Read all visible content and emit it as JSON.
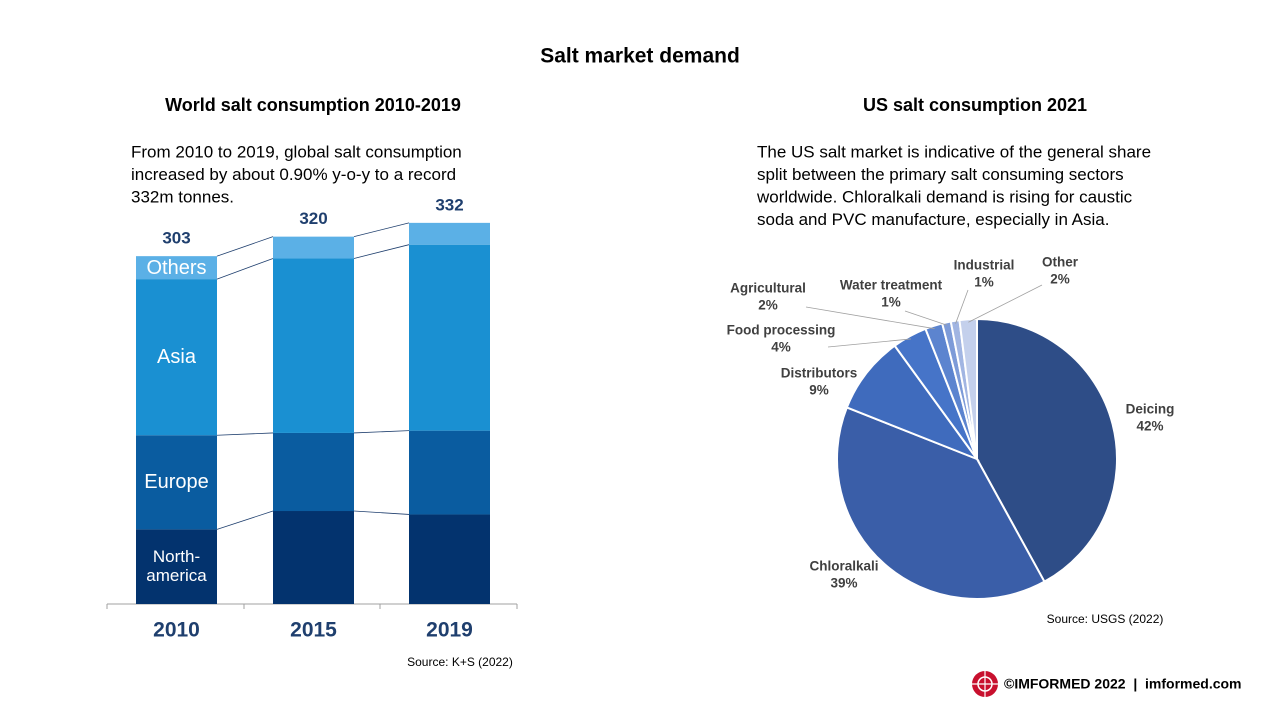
{
  "title": "Salt market demand",
  "footer": "©IMFORMED 2022  |  imformed.com",
  "chart_data": [
    {
      "type": "bar",
      "stacked": true,
      "title": "World salt consumption 2010-2019",
      "description": [
        "From 2010 to 2019, global salt consumption",
        "increased by about 0.90% y-o-y to a record",
        "332m tonnes."
      ],
      "categories": [
        "2010",
        "2015",
        "2019"
      ],
      "series": [
        {
          "name": "North-america",
          "color": "#03336e",
          "values": [
            65,
            81,
            78
          ]
        },
        {
          "name": "Europe",
          "color": "#0a5ca0",
          "values": [
            82,
            68,
            73
          ]
        },
        {
          "name": "Asia",
          "color": "#1a90d2",
          "values": [
            136,
            152,
            162
          ]
        },
        {
          "name": "Others",
          "color": "#5bb0e6",
          "values": [
            20,
            19,
            19
          ]
        }
      ],
      "totals": [
        303,
        320,
        332
      ],
      "source": "Source: K+S (2022)"
    },
    {
      "type": "pie",
      "title": "US salt consumption 2021",
      "description": [
        "The US salt market is indicative of the general share",
        "split between the primary salt consuming sectors",
        "worldwide. Chloralkali demand is rising for caustic",
        "soda and PVC manufacture, especially in Asia."
      ],
      "categories": [
        "Deicing",
        "Chloralkali",
        "Distributors",
        "Food processing",
        "Agricultural",
        "Water treatment",
        "Industrial",
        "Other"
      ],
      "values": [
        42,
        39,
        9,
        4,
        2,
        1,
        1,
        2
      ],
      "value_labels": [
        "42%",
        "39%",
        "9%",
        "4%",
        "2%",
        "1%",
        "1%",
        "2%"
      ],
      "colors": [
        "#2e4d87",
        "#3a5ea8",
        "#3f6bbd",
        "#4674c8",
        "#5c84cf",
        "#7d9bd8",
        "#a1b5e2",
        "#c4d0ec"
      ],
      "source": "Source: USGS (2022)"
    }
  ]
}
